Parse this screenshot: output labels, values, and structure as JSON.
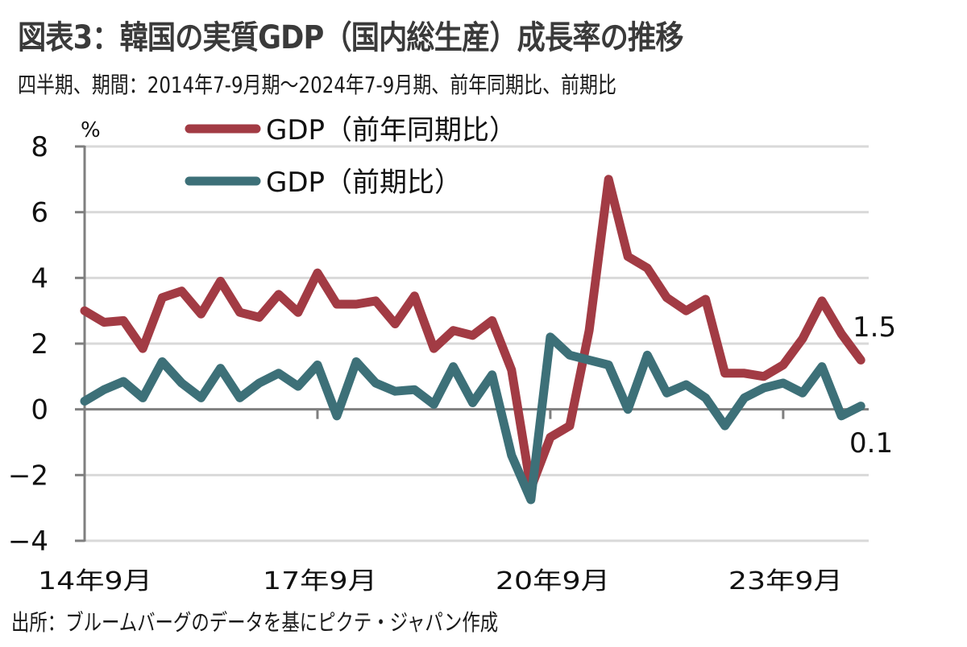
{
  "title": "図表3：韓国の実質GDP（国内総生産）成長率の推移",
  "subtitle": "四半期、期間：2014年7-9月期～2024年7-9月期、前年同期比、前期比",
  "source": "出所：ブルームバーグのデータを基にピクテ・ジャパン作成",
  "chart_data": {
    "type": "line",
    "title": "韓国の実質GDP（国内総生産）成長率の推移",
    "ylabel": "%",
    "xlabel": "",
    "ylim": [
      -4,
      8
    ],
    "yticks": [
      8,
      6,
      4,
      2,
      0,
      -2,
      -4
    ],
    "grid": true,
    "legend_position": "top-left",
    "x": [
      "2014Q3",
      "2014Q4",
      "2015Q1",
      "2015Q2",
      "2015Q3",
      "2015Q4",
      "2016Q1",
      "2016Q2",
      "2016Q3",
      "2016Q4",
      "2017Q1",
      "2017Q2",
      "2017Q3",
      "2017Q4",
      "2018Q1",
      "2018Q2",
      "2018Q3",
      "2018Q4",
      "2019Q1",
      "2019Q2",
      "2019Q3",
      "2019Q4",
      "2020Q1",
      "2020Q2",
      "2020Q3",
      "2020Q4",
      "2021Q1",
      "2021Q2",
      "2021Q3",
      "2021Q4",
      "2022Q1",
      "2022Q2",
      "2022Q3",
      "2022Q4",
      "2023Q1",
      "2023Q2",
      "2023Q3",
      "2023Q4",
      "2024Q1",
      "2024Q2",
      "2024Q3"
    ],
    "xtick_labels": [
      {
        "index": 0,
        "label": "14年9月"
      },
      {
        "index": 12,
        "label": "17年9月"
      },
      {
        "index": 24,
        "label": "20年9月"
      },
      {
        "index": 36,
        "label": "23年9月"
      }
    ],
    "series": [
      {
        "name": "GDP（前年同期比）",
        "color": "#A23B44",
        "values": [
          3.0,
          2.65,
          2.7,
          1.85,
          3.4,
          3.6,
          2.9,
          3.9,
          2.95,
          2.8,
          3.5,
          2.95,
          4.15,
          3.2,
          3.2,
          3.3,
          2.6,
          3.45,
          1.85,
          2.4,
          2.25,
          2.7,
          1.2,
          -2.4,
          -0.85,
          -0.5,
          2.4,
          7.0,
          4.65,
          4.3,
          3.4,
          3.0,
          3.35,
          1.1,
          1.1,
          1.0,
          1.35,
          2.15,
          3.3,
          2.3,
          1.5
        ],
        "end_label": "1.5"
      },
      {
        "name": "GDP（前期比）",
        "color": "#3D7078",
        "values": [
          0.25,
          0.6,
          0.85,
          0.35,
          1.45,
          0.8,
          0.35,
          1.25,
          0.35,
          0.8,
          1.1,
          0.7,
          1.35,
          -0.2,
          1.45,
          0.8,
          0.55,
          0.6,
          0.15,
          1.3,
          0.2,
          1.05,
          -1.4,
          -2.75,
          2.2,
          1.65,
          1.5,
          1.35,
          0.0,
          1.65,
          0.5,
          0.75,
          0.35,
          -0.5,
          0.35,
          0.65,
          0.8,
          0.5,
          1.3,
          -0.2,
          0.1
        ],
        "end_label": "0.1"
      }
    ]
  }
}
